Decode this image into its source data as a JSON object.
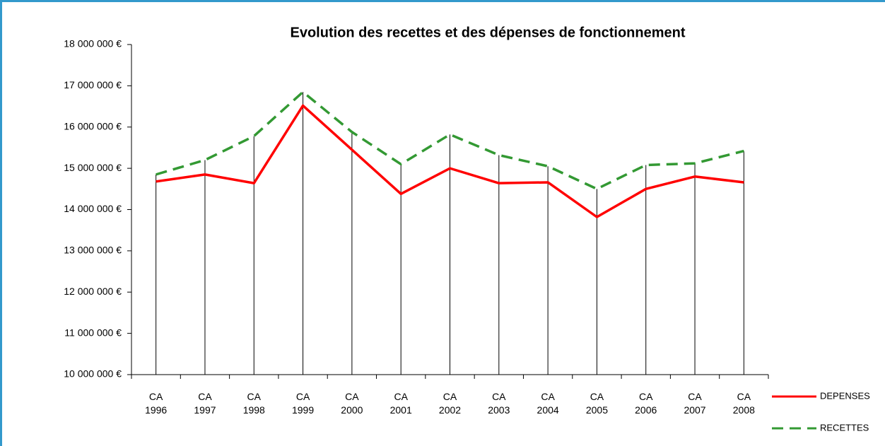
{
  "chart_data": {
    "type": "line",
    "title": "Evolution des recettes et des dépenses de fonctionnement",
    "categories": [
      "CA 1996",
      "CA 1997",
      "CA 1998",
      "CA 1999",
      "CA 2000",
      "CA 2001",
      "CA 2002",
      "CA 2003",
      "CA 2004",
      "CA 2005",
      "CA 2006",
      "CA 2007",
      "CA 2008"
    ],
    "series": [
      {
        "name": "DEPENSES",
        "color": "#ff0000",
        "dash": false,
        "values": [
          14680000,
          14850000,
          14640000,
          16520000,
          15450000,
          14380000,
          15000000,
          14640000,
          14660000,
          13820000,
          14500000,
          14800000,
          14660000
        ]
      },
      {
        "name": "RECETTES",
        "color": "#339933",
        "dash": true,
        "values": [
          14850000,
          15200000,
          15780000,
          16850000,
          15880000,
          15100000,
          15820000,
          15320000,
          15050000,
          14500000,
          15080000,
          15120000,
          15420000
        ]
      }
    ],
    "ylim": [
      10000000,
      18000000
    ],
    "yticks": [
      {
        "value": 10000000,
        "label": "10 000 000 €"
      },
      {
        "value": 11000000,
        "label": "11 000 000 €"
      },
      {
        "value": 12000000,
        "label": "12 000 000 €"
      },
      {
        "value": 13000000,
        "label": "13 000 000 €"
      },
      {
        "value": 14000000,
        "label": "14 000 000 €"
      },
      {
        "value": 15000000,
        "label": "15 000 000 €"
      },
      {
        "value": 16000000,
        "label": "16 000 000 €"
      },
      {
        "value": 17000000,
        "label": "17 000 000 €"
      },
      {
        "value": 18000000,
        "label": "18 000 000 €"
      }
    ],
    "drop_lines": true
  }
}
